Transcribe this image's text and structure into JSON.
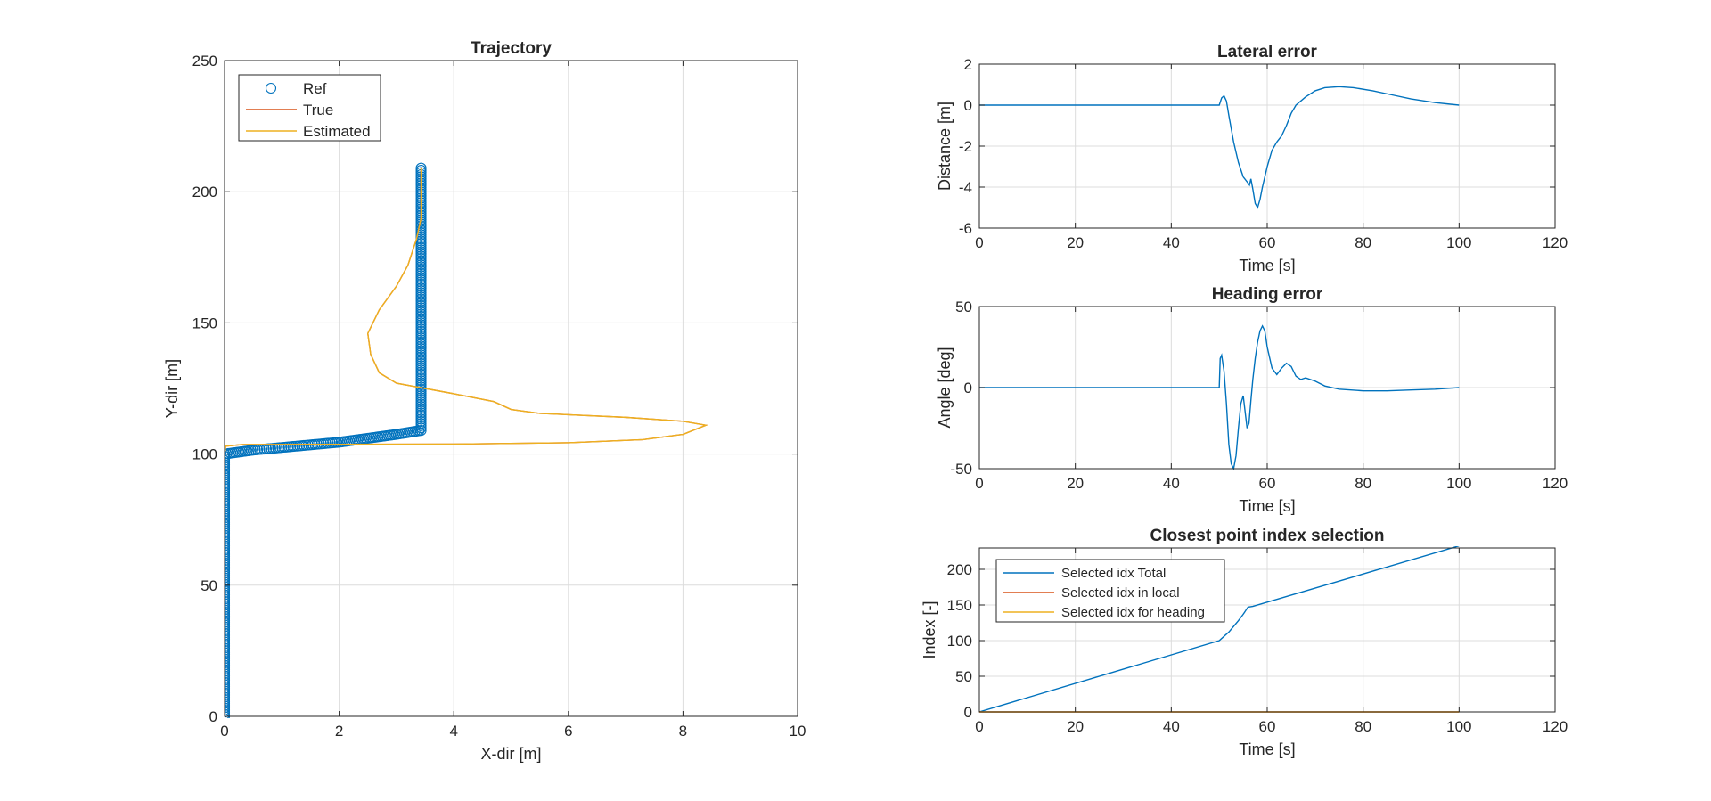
{
  "chart_data": [
    {
      "type": "line",
      "title": "Trajectory",
      "xlabel": "X-dir [m]",
      "ylabel": "Y-dir [m]",
      "xlim": [
        0,
        10
      ],
      "ylim": [
        0,
        250
      ],
      "xticks": [
        0,
        2,
        4,
        6,
        8,
        10
      ],
      "yticks": [
        0,
        50,
        100,
        150,
        200,
        250
      ],
      "grid": true,
      "legend": "top-left",
      "colors": {
        "ref": "#0072BD",
        "true": "#D95319",
        "estimated": "#EDB120"
      },
      "series": [
        {
          "name": "Ref",
          "marker": "circle",
          "points": [
            [
              0,
              0
            ],
            [
              0,
              100
            ],
            [
              0.5,
              101.5
            ],
            [
              1,
              102.5
            ],
            [
              1.5,
              103.5
            ],
            [
              2,
              104.5
            ],
            [
              2.5,
              106
            ],
            [
              3,
              107.5
            ],
            [
              3.43,
              109
            ],
            [
              3.43,
              110
            ],
            [
              3.43,
              209
            ]
          ]
        },
        {
          "name": "True",
          "points": [
            [
              0,
              0
            ],
            [
              0,
              100
            ],
            [
              0.02,
              103
            ],
            [
              0.3,
              103.6
            ],
            [
              2,
              103.7
            ],
            [
              4,
              103.8
            ],
            [
              6,
              104.3
            ],
            [
              7.3,
              105.5
            ],
            [
              8,
              107.5
            ],
            [
              8.4,
              111
            ],
            [
              8,
              112.5
            ],
            [
              7,
              114
            ],
            [
              5.5,
              115.5
            ],
            [
              5,
              117
            ],
            [
              4.7,
              120
            ],
            [
              4,
              123
            ],
            [
              3,
              127
            ],
            [
              2.7,
              131
            ],
            [
              2.55,
              138
            ],
            [
              2.5,
              146
            ],
            [
              2.7,
              155
            ],
            [
              3,
              164
            ],
            [
              3.2,
              172
            ],
            [
              3.35,
              182
            ],
            [
              3.43,
              190
            ],
            [
              3.43,
              209
            ]
          ]
        },
        {
          "name": "Estimated",
          "points": [
            [
              0,
              0
            ],
            [
              0,
              100
            ],
            [
              0.02,
              103
            ],
            [
              0.3,
              103.6
            ],
            [
              2,
              103.7
            ],
            [
              4,
              103.8
            ],
            [
              6,
              104.3
            ],
            [
              7.3,
              105.5
            ],
            [
              8,
              107.5
            ],
            [
              8.4,
              111
            ],
            [
              8,
              112.5
            ],
            [
              7,
              114
            ],
            [
              5.5,
              115.5
            ],
            [
              5,
              117
            ],
            [
              4.7,
              120
            ],
            [
              4,
              123
            ],
            [
              3,
              127
            ],
            [
              2.7,
              131
            ],
            [
              2.55,
              138
            ],
            [
              2.5,
              146
            ],
            [
              2.7,
              155
            ],
            [
              3,
              164
            ],
            [
              3.2,
              172
            ],
            [
              3.35,
              182
            ],
            [
              3.43,
              190
            ],
            [
              3.43,
              209
            ]
          ]
        }
      ]
    },
    {
      "type": "line",
      "title": "Lateral error",
      "xlabel": "Time [s]",
      "ylabel": "Distance [m]",
      "xlim": [
        0,
        120
      ],
      "ylim": [
        -6,
        2
      ],
      "xticks": [
        0,
        20,
        40,
        60,
        80,
        100,
        120
      ],
      "yticks": [
        -6,
        -4,
        -2,
        0,
        2
      ],
      "grid": true,
      "series": [
        {
          "points": [
            [
              0,
              0
            ],
            [
              50,
              0
            ],
            [
              50.5,
              0.35
            ],
            [
              51,
              0.45
            ],
            [
              51.5,
              0.2
            ],
            [
              52,
              -0.5
            ],
            [
              53,
              -1.8
            ],
            [
              54,
              -2.8
            ],
            [
              55,
              -3.5
            ],
            [
              56,
              -3.8
            ],
            [
              56.3,
              -3.9
            ],
            [
              56.6,
              -3.6
            ],
            [
              57,
              -4.1
            ],
            [
              57.5,
              -4.8
            ],
            [
              58,
              -5.0
            ],
            [
              58.5,
              -4.6
            ],
            [
              59,
              -4.0
            ],
            [
              60,
              -3.0
            ],
            [
              61,
              -2.2
            ],
            [
              62,
              -1.8
            ],
            [
              63,
              -1.5
            ],
            [
              64,
              -1.0
            ],
            [
              65,
              -0.4
            ],
            [
              66,
              0.0
            ],
            [
              68,
              0.4
            ],
            [
              70,
              0.7
            ],
            [
              72,
              0.85
            ],
            [
              75,
              0.9
            ],
            [
              78,
              0.85
            ],
            [
              82,
              0.7
            ],
            [
              86,
              0.5
            ],
            [
              90,
              0.3
            ],
            [
              95,
              0.12
            ],
            [
              100,
              0.0
            ]
          ]
        }
      ]
    },
    {
      "type": "line",
      "title": "Heading error",
      "xlabel": "Time [s]",
      "ylabel": "Angle [deg]",
      "xlim": [
        0,
        120
      ],
      "ylim": [
        -50,
        50
      ],
      "xticks": [
        0,
        20,
        40,
        60,
        80,
        100,
        120
      ],
      "yticks": [
        -50,
        0,
        50
      ],
      "grid": true,
      "series": [
        {
          "points": [
            [
              0,
              0
            ],
            [
              50,
              0
            ],
            [
              50.2,
              18
            ],
            [
              50.5,
              20
            ],
            [
              51,
              10
            ],
            [
              51.5,
              -10
            ],
            [
              52,
              -35
            ],
            [
              52.5,
              -47
            ],
            [
              53,
              -50
            ],
            [
              53.5,
              -42
            ],
            [
              54,
              -25
            ],
            [
              54.5,
              -10
            ],
            [
              55,
              -5
            ],
            [
              55.4,
              -15
            ],
            [
              55.8,
              -25
            ],
            [
              56.2,
              -22
            ],
            [
              56.6,
              -8
            ],
            [
              57,
              5
            ],
            [
              57.5,
              18
            ],
            [
              58,
              28
            ],
            [
              58.5,
              35
            ],
            [
              59,
              38
            ],
            [
              59.5,
              35
            ],
            [
              60,
              25
            ],
            [
              61,
              12
            ],
            [
              62,
              8
            ],
            [
              63,
              12
            ],
            [
              64,
              15
            ],
            [
              65,
              13
            ],
            [
              66,
              7
            ],
            [
              67,
              5
            ],
            [
              68,
              6
            ],
            [
              69,
              5
            ],
            [
              70,
              4
            ],
            [
              72,
              1
            ],
            [
              75,
              -1
            ],
            [
              80,
              -2
            ],
            [
              85,
              -2
            ],
            [
              90,
              -1.5
            ],
            [
              95,
              -1
            ],
            [
              100,
              0
            ]
          ]
        }
      ]
    },
    {
      "type": "line",
      "title": "Closest point index selection",
      "xlabel": "Time [s]",
      "ylabel": "Index [-]",
      "xlim": [
        0,
        120
      ],
      "ylim": [
        0,
        230
      ],
      "xticks": [
        0,
        20,
        40,
        60,
        80,
        100,
        120
      ],
      "yticks": [
        0,
        50,
        100,
        150,
        200
      ],
      "grid": true,
      "legend": "top-left",
      "series": [
        {
          "name": "Selected idx Total",
          "points": [
            [
              0,
              0
            ],
            [
              50,
              100
            ],
            [
              51,
              106
            ],
            [
              52,
              112
            ],
            [
              53,
              120
            ],
            [
              54,
              128
            ],
            [
              55,
              137
            ],
            [
              56,
              147
            ],
            [
              57,
              148
            ],
            [
              100,
              233
            ]
          ]
        },
        {
          "name": "Selected idx in local",
          "points": [
            [
              0,
              0
            ],
            [
              100,
              0
            ]
          ]
        },
        {
          "name": "Selected idx for heading",
          "points": [
            [
              0,
              0
            ],
            [
              100,
              0
            ]
          ]
        }
      ]
    }
  ]
}
